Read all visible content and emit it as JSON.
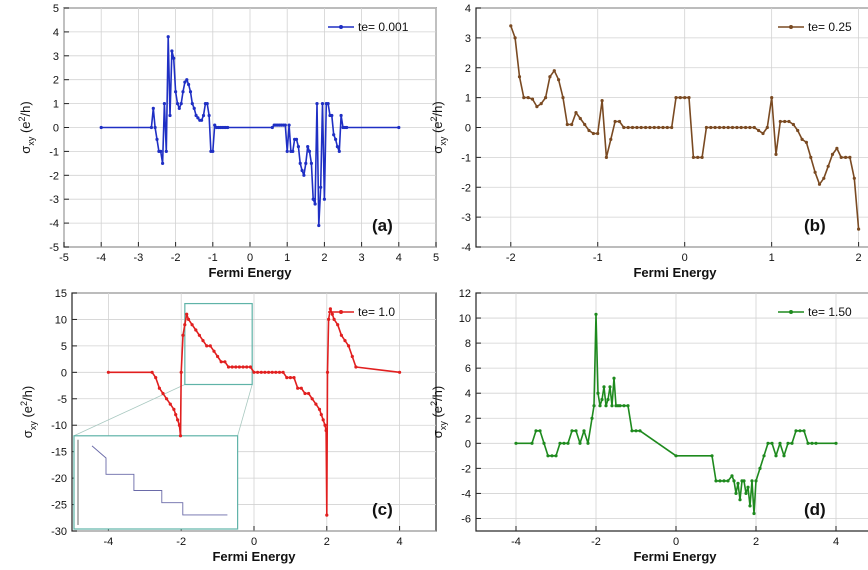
{
  "chart_data": [
    {
      "id": "a",
      "type": "line",
      "panel_label": "(a)",
      "xlabel": "Fermi Energy",
      "ylabel": "σ_xy (e²/h)",
      "xlim": [
        -5,
        5
      ],
      "ylim": [
        -5,
        5
      ],
      "xticks": [
        -5,
        -4,
        -3,
        -2,
        -1,
        0,
        1,
        2,
        3,
        4,
        5
      ],
      "yticks": [
        -5,
        -4,
        -3,
        -2,
        -1,
        0,
        1,
        2,
        3,
        4,
        5
      ],
      "grid": true,
      "legend_position": "top-right",
      "series": [
        {
          "name": "te= 0.001",
          "color": "#1f2fc4",
          "x": [
            -4.0,
            -2.65,
            -2.6,
            -2.55,
            -2.5,
            -2.45,
            -2.4,
            -2.35,
            -2.3,
            -2.25,
            -2.2,
            -2.15,
            -2.1,
            -2.05,
            -2.0,
            -1.95,
            -1.9,
            -1.85,
            -1.8,
            -1.75,
            -1.7,
            -1.65,
            -1.6,
            -1.55,
            -1.5,
            -1.45,
            -1.4,
            -1.35,
            -1.3,
            -1.25,
            -1.2,
            -1.15,
            -1.1,
            -1.05,
            -1.0,
            -0.95,
            -0.9,
            -0.85,
            -0.8,
            -0.75,
            -0.7,
            -0.65,
            -0.6,
            0.6,
            0.65,
            0.7,
            0.75,
            0.8,
            0.85,
            0.9,
            0.95,
            1.0,
            1.05,
            1.1,
            1.15,
            1.2,
            1.25,
            1.3,
            1.35,
            1.4,
            1.45,
            1.5,
            1.55,
            1.6,
            1.65,
            1.7,
            1.75,
            1.8,
            1.85,
            1.9,
            1.95,
            2.0,
            2.05,
            2.1,
            2.15,
            2.2,
            2.25,
            2.3,
            2.35,
            2.4,
            2.45,
            2.5,
            2.55,
            2.6,
            4.0
          ],
          "y": [
            0,
            0,
            0.8,
            0,
            -0.5,
            -1.0,
            -1.0,
            -1.5,
            1.0,
            -1.0,
            3.8,
            0.5,
            3.2,
            2.9,
            1.5,
            1.0,
            0.8,
            1.0,
            1.5,
            1.9,
            2.0,
            1.8,
            1.5,
            1.0,
            0.8,
            0.5,
            0.4,
            0.3,
            0.3,
            0.5,
            1.0,
            1.0,
            0.5,
            -1.0,
            -1.0,
            0.1,
            0,
            0,
            0,
            0,
            0,
            0,
            0,
            0,
            0.1,
            0.1,
            0.1,
            0.1,
            0.1,
            0.1,
            0.1,
            -1.0,
            0.1,
            -1.0,
            -1.0,
            -0.5,
            -0.5,
            -0.8,
            -1.5,
            -1.8,
            -2.0,
            -1.5,
            -0.8,
            -1.0,
            -1.5,
            -3.0,
            -3.2,
            1.0,
            -4.1,
            -2.5,
            1.0,
            -3.0,
            1.0,
            1.0,
            0.5,
            0.5,
            -0.3,
            -0.5,
            -0.8,
            -1.0,
            0.5,
            0,
            0,
            0,
            0
          ]
        }
      ]
    },
    {
      "id": "b",
      "type": "line",
      "panel_label": "(b)",
      "xlabel": "Fermi Energy",
      "ylabel": "σ_xy (e²/h)",
      "xlim": [
        -2.4,
        2.2
      ],
      "ylim": [
        -4,
        4
      ],
      "xticks": [
        -2,
        -1,
        0,
        1,
        2
      ],
      "yticks": [
        -4,
        -3,
        -2,
        -1,
        0,
        1,
        2,
        3,
        4
      ],
      "grid": true,
      "legend_position": "top-right",
      "series": [
        {
          "name": "te= 0.25",
          "color": "#7a4a22",
          "x": [
            -2.0,
            -1.95,
            -1.9,
            -1.85,
            -1.8,
            -1.75,
            -1.7,
            -1.65,
            -1.6,
            -1.55,
            -1.5,
            -1.45,
            -1.4,
            -1.35,
            -1.3,
            -1.25,
            -1.2,
            -1.15,
            -1.1,
            -1.05,
            -1.0,
            -0.95,
            -0.9,
            -0.85,
            -0.8,
            -0.75,
            -0.7,
            -0.65,
            -0.6,
            -0.55,
            -0.5,
            -0.45,
            -0.4,
            -0.35,
            -0.3,
            -0.25,
            -0.2,
            -0.15,
            -0.1,
            -0.05,
            0.0,
            0.05,
            0.1,
            0.15,
            0.2,
            0.25,
            0.3,
            0.35,
            0.4,
            0.45,
            0.5,
            0.55,
            0.6,
            0.65,
            0.7,
            0.75,
            0.8,
            0.85,
            0.9,
            0.95,
            1.0,
            1.05,
            1.1,
            1.15,
            1.2,
            1.25,
            1.3,
            1.35,
            1.4,
            1.45,
            1.5,
            1.55,
            1.6,
            1.65,
            1.7,
            1.75,
            1.8,
            1.85,
            1.9,
            1.95,
            2.0
          ],
          "y": [
            3.4,
            3.0,
            1.7,
            1.0,
            1.0,
            0.95,
            0.7,
            0.8,
            1.0,
            1.7,
            1.9,
            1.6,
            1.0,
            0.1,
            0.1,
            0.5,
            0.3,
            0.1,
            -0.1,
            -0.2,
            -0.2,
            0.9,
            -1.0,
            -0.4,
            0.2,
            0.2,
            0.0,
            0.0,
            0.0,
            0.0,
            0.0,
            0.0,
            0.0,
            0.0,
            0.0,
            0.0,
            0.0,
            0.0,
            1.0,
            1.0,
            1.0,
            1.0,
            -1.0,
            -1.0,
            -1.0,
            0.0,
            0.0,
            0.0,
            0.0,
            0.0,
            0.0,
            0.0,
            0.0,
            0.0,
            0.0,
            0.0,
            0.0,
            -0.1,
            -0.2,
            0.0,
            1.0,
            -0.9,
            0.2,
            0.2,
            0.2,
            0.1,
            -0.1,
            -0.4,
            -0.5,
            -1.0,
            -1.5,
            -1.9,
            -1.7,
            -1.3,
            -0.9,
            -0.7,
            -1.0,
            -1.0,
            -1.0,
            -1.7,
            -3.4
          ]
        }
      ]
    },
    {
      "id": "c",
      "type": "line",
      "panel_label": "(c)",
      "xlabel": "Fermi Energy",
      "ylabel": "σ_xy (e²/h)",
      "xlim": [
        -5,
        5
      ],
      "ylim": [
        -30,
        15
      ],
      "xticks": [
        -4,
        -2,
        0,
        2,
        4
      ],
      "yticks": [
        -30,
        -25,
        -20,
        -15,
        -10,
        -5,
        0,
        5,
        10,
        15
      ],
      "grid": true,
      "legend_position": "top-right",
      "series": [
        {
          "name": "te= 1.0",
          "color": "#e11f1f",
          "x": [
            -4.0,
            -2.8,
            -2.7,
            -2.6,
            -2.5,
            -2.4,
            -2.3,
            -2.2,
            -2.15,
            -2.1,
            -2.05,
            -2.02,
            -2.0,
            -1.95,
            -1.9,
            -1.85,
            -1.8,
            -1.7,
            -1.6,
            -1.5,
            -1.4,
            -1.3,
            -1.2,
            -1.1,
            -1.0,
            -0.9,
            -0.8,
            -0.7,
            -0.6,
            -0.5,
            -0.4,
            -0.3,
            -0.2,
            -0.1,
            0.0,
            0.1,
            0.2,
            0.3,
            0.4,
            0.5,
            0.6,
            0.7,
            0.8,
            0.9,
            1.0,
            1.1,
            1.2,
            1.3,
            1.4,
            1.5,
            1.6,
            1.7,
            1.8,
            1.85,
            1.9,
            1.95,
            1.98,
            2.0,
            2.02,
            2.05,
            2.1,
            2.15,
            2.2,
            2.3,
            2.4,
            2.5,
            2.6,
            2.7,
            2.8,
            4.0
          ],
          "y": [
            0,
            0,
            -1,
            -3,
            -4,
            -5,
            -6,
            -7,
            -8,
            -9,
            -10,
            -12,
            0,
            7,
            9,
            11,
            10,
            9,
            8,
            7,
            6,
            5,
            5,
            4,
            3,
            2,
            2,
            1,
            1,
            1,
            1,
            1,
            1,
            1,
            0,
            0,
            0,
            0,
            0,
            0,
            0,
            0,
            0,
            -1,
            -1,
            -1,
            -3,
            -3,
            -4,
            -4,
            -5,
            -6,
            -7,
            -8,
            -9,
            -10,
            -11,
            -27,
            0,
            10,
            12,
            11,
            10,
            9,
            7,
            6,
            5,
            3,
            1,
            0
          ]
        }
      ],
      "inset": true
    },
    {
      "id": "d",
      "type": "line",
      "panel_label": "(d)",
      "xlabel": "Fermi Energy",
      "ylabel": "σ_xy (e²/h)",
      "xlim": [
        -5,
        5
      ],
      "ylim": [
        -7,
        12
      ],
      "xticks": [
        -4,
        -2,
        0,
        2,
        4
      ],
      "yticks": [
        -6,
        -4,
        -2,
        0,
        2,
        4,
        6,
        8,
        10,
        12
      ],
      "grid": true,
      "legend_position": "top-right",
      "series": [
        {
          "name": "te= 1.50",
          "color": "#1e8a1e",
          "x": [
            -4.0,
            -3.6,
            -3.5,
            -3.4,
            -3.3,
            -3.2,
            -3.1,
            -3.0,
            -2.9,
            -2.8,
            -2.7,
            -2.6,
            -2.5,
            -2.4,
            -2.3,
            -2.2,
            -2.1,
            -2.05,
            -2.0,
            -1.95,
            -1.9,
            -1.85,
            -1.8,
            -1.75,
            -1.7,
            -1.65,
            -1.6,
            -1.55,
            -1.5,
            -1.45,
            -1.4,
            -1.3,
            -1.2,
            -1.1,
            -1.0,
            -0.9,
            0.0,
            0.9,
            1.0,
            1.1,
            1.2,
            1.3,
            1.4,
            1.45,
            1.5,
            1.55,
            1.6,
            1.65,
            1.7,
            1.75,
            1.8,
            1.85,
            1.9,
            1.95,
            2.0,
            2.1,
            2.2,
            2.3,
            2.4,
            2.5,
            2.6,
            2.7,
            2.8,
            2.9,
            3.0,
            3.1,
            3.2,
            3.3,
            3.4,
            3.5,
            4.0
          ],
          "y": [
            0,
            0,
            1,
            1,
            0,
            -1,
            -1,
            -1,
            0,
            0,
            0,
            1,
            1,
            0,
            1,
            0,
            2,
            3,
            10.3,
            4,
            3,
            3.5,
            4.5,
            3,
            3.5,
            4.5,
            3,
            5.2,
            3,
            3,
            3,
            3,
            3,
            1,
            1,
            1,
            -1,
            -1,
            -3,
            -3,
            -3,
            -3,
            -2.6,
            -3,
            -4,
            -3.2,
            -4.5,
            -3,
            -3,
            -4,
            -3.5,
            -5,
            -3,
            -5.6,
            -3,
            -2,
            -1,
            0,
            0,
            -1,
            0,
            -1,
            0,
            0,
            1,
            1,
            1,
            0,
            0,
            0,
            0
          ]
        }
      ]
    }
  ]
}
